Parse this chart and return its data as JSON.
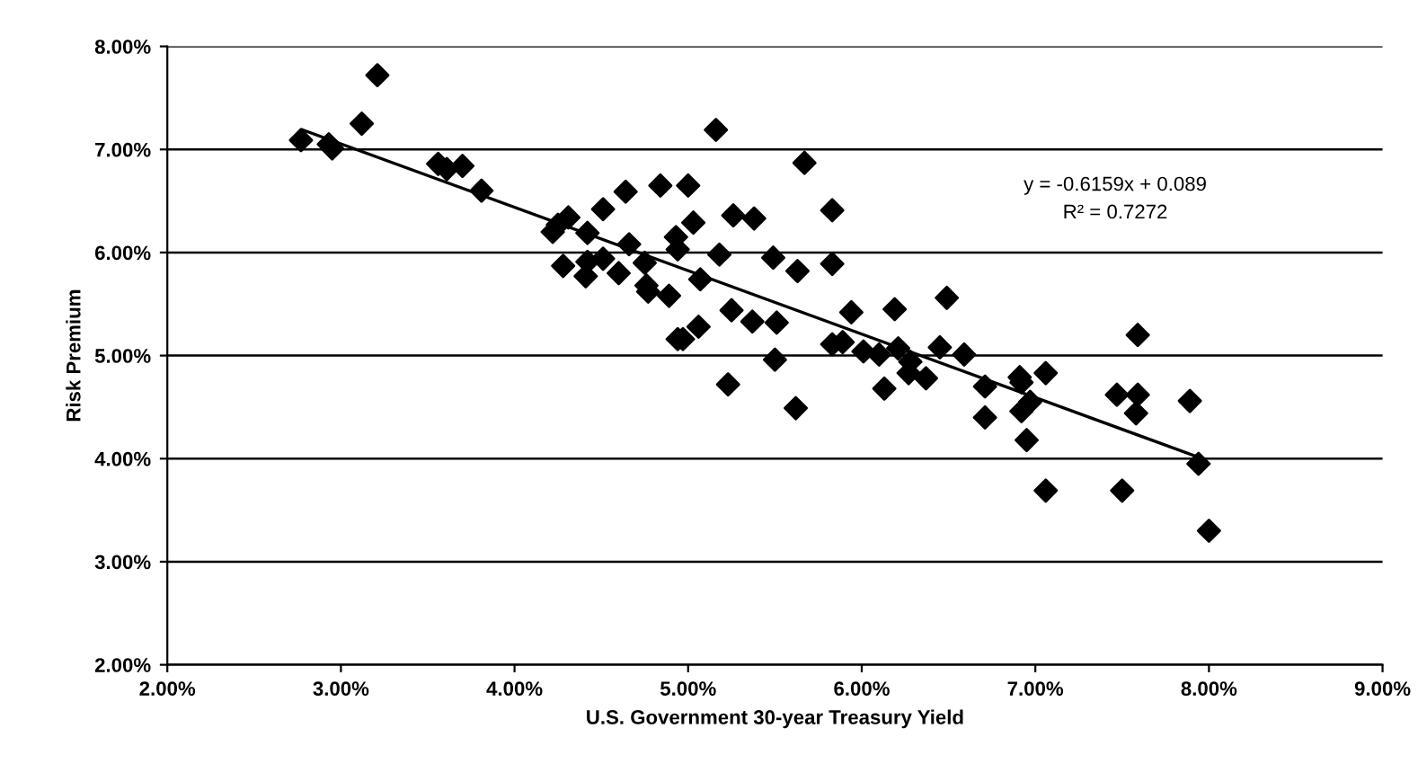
{
  "chart_data": {
    "type": "scatter",
    "xlabel": "U.S. Government 30-year Treasury Yield",
    "ylabel": "Risk Premium",
    "xlim": [
      2,
      9
    ],
    "ylim": [
      2,
      8
    ],
    "xticks": [
      {
        "value": 2,
        "label": "2.00%"
      },
      {
        "value": 3,
        "label": "3.00%"
      },
      {
        "value": 4,
        "label": "4.00%"
      },
      {
        "value": 5,
        "label": "5.00%"
      },
      {
        "value": 6,
        "label": "6.00%"
      },
      {
        "value": 7,
        "label": "7.00%"
      },
      {
        "value": 8,
        "label": "8.00%"
      },
      {
        "value": 9,
        "label": "9.00%"
      }
    ],
    "yticks": [
      {
        "value": 2,
        "label": "2.00%"
      },
      {
        "value": 3,
        "label": "3.00%"
      },
      {
        "value": 4,
        "label": "4.00%"
      },
      {
        "value": 5,
        "label": "5.00%"
      },
      {
        "value": 6,
        "label": "6.00%"
      },
      {
        "value": 7,
        "label": "7.00%"
      },
      {
        "value": 8,
        "label": "8.00%"
      }
    ],
    "grid": "y",
    "legend": false,
    "annotations": [
      "y = -0.6159x + 0.089",
      "R² = 0.7272"
    ],
    "series": [
      {
        "type": "scatter",
        "marker": "diamond",
        "color": "#000000",
        "x": [
          2.77,
          2.93,
          2.95,
          3.12,
          3.21,
          3.56,
          3.61,
          3.7,
          3.81,
          4.22,
          4.25,
          4.31,
          4.51,
          4.42,
          4.28,
          4.41,
          4.42,
          4.51,
          4.64,
          4.6,
          4.66,
          4.75,
          4.76,
          4.77,
          4.84,
          4.89,
          4.93,
          4.94,
          5.0,
          5.03,
          5.07,
          5.06,
          4.94,
          4.97,
          5.16,
          5.18,
          5.26,
          5.25,
          5.23,
          5.38,
          5.37,
          5.49,
          5.51,
          5.5,
          5.63,
          5.62,
          5.67,
          5.83,
          5.83,
          5.83,
          5.89,
          5.94,
          6.01,
          6.1,
          6.13,
          6.19,
          6.21,
          6.28,
          6.27,
          6.37,
          6.49,
          6.45,
          6.59,
          6.71,
          6.71,
          6.91,
          6.92,
          7.06,
          6.97,
          6.92,
          6.95,
          7.06,
          7.47,
          7.59,
          7.59,
          7.58,
          7.5,
          7.89,
          7.94,
          8.0
        ],
        "values": [
          7.09,
          7.05,
          7.01,
          7.25,
          7.72,
          6.86,
          6.81,
          6.84,
          6.6,
          6.2,
          6.27,
          6.34,
          6.42,
          6.19,
          5.87,
          5.77,
          5.91,
          5.94,
          6.59,
          5.8,
          6.08,
          5.9,
          5.68,
          5.62,
          6.65,
          5.58,
          6.15,
          6.03,
          6.65,
          6.29,
          5.74,
          5.28,
          5.16,
          5.16,
          7.19,
          5.98,
          6.36,
          5.44,
          4.72,
          6.33,
          5.33,
          5.95,
          5.32,
          4.96,
          5.82,
          4.49,
          6.87,
          6.41,
          5.89,
          5.11,
          5.13,
          5.42,
          5.04,
          5.01,
          4.68,
          5.45,
          5.07,
          4.94,
          4.83,
          4.78,
          5.56,
          5.08,
          5.01,
          4.7,
          4.4,
          4.79,
          4.74,
          4.83,
          4.55,
          4.46,
          4.18,
          3.69,
          4.62,
          5.2,
          4.62,
          4.44,
          3.69,
          4.56,
          3.95,
          3.3
        ]
      },
      {
        "type": "line",
        "line_style": "solid",
        "color": "#000000",
        "x": [
          2.78,
          7.93
        ],
        "values": [
          7.19,
          4.02
        ]
      }
    ]
  }
}
